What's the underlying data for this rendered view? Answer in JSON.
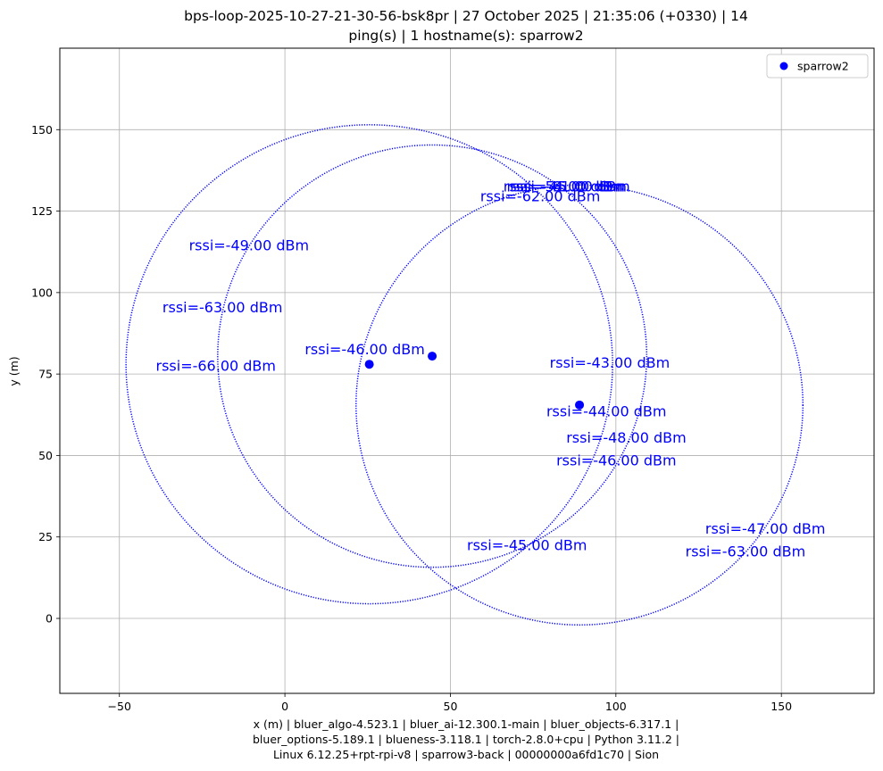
{
  "chart_data": {
    "type": "scatter",
    "title": [
      "bps-loop-2025-10-27-21-30-56-bsk8pr | 27 October 2025 | 21:35:06 (+0330) | 14",
      "ping(s) | 1 hostname(s): sparrow2"
    ],
    "xlabel": [
      "x (m) | bluer_algo-4.523.1 | bluer_ai-12.300.1-main | bluer_objects-6.317.1 |",
      "bluer_options-5.189.1 | blueness-3.118.1 | torch-2.8.0+cpu | Python 3.11.2 |",
      "Linux 6.12.25+rpt-rpi-v8 | sparrow3-back | 00000000a6fd1c70 | Sion"
    ],
    "ylabel": "y (m)",
    "xlim": [
      -68,
      178
    ],
    "ylim": [
      -23,
      175
    ],
    "xticks": [
      -50,
      0,
      50,
      100,
      150
    ],
    "yticks": [
      0,
      25,
      50,
      75,
      100,
      125,
      150
    ],
    "grid": true,
    "legend": {
      "position": "top-right",
      "entries": [
        "sparrow2"
      ]
    },
    "series": [
      {
        "name": "sparrow2",
        "color": "#0000ff",
        "points": [
          {
            "x": 25.5,
            "y": 78.0
          },
          {
            "x": 44.5,
            "y": 80.5
          },
          {
            "x": 89.0,
            "y": 65.5
          }
        ]
      }
    ],
    "circles": [
      {
        "cx": 25.5,
        "cy": 78.0,
        "r": 73.5
      },
      {
        "cx": 44.5,
        "cy": 80.5,
        "r": 64.8
      },
      {
        "cx": 89.0,
        "cy": 65.5,
        "r": 67.5
      }
    ],
    "annotations": [
      {
        "text": "rssi=-54.00 dBm",
        "x": 66,
        "y": 131
      },
      {
        "text": "rssi=-45.00 dBm",
        "x": 67,
        "y": 131
      },
      {
        "text": "rssi=-61.00 dBm",
        "x": 68,
        "y": 131
      },
      {
        "text": "rssi=-62.00 dBm",
        "x": 59,
        "y": 128
      },
      {
        "text": "rssi=-49.00 dBm",
        "x": -29,
        "y": 113
      },
      {
        "text": "rssi=-63.00 dBm",
        "x": -37,
        "y": 94
      },
      {
        "text": "rssi=-46.00 dBm",
        "x": 6,
        "y": 81
      },
      {
        "text": "rssi=-66.00 dBm",
        "x": -39,
        "y": 76
      },
      {
        "text": "rssi=-43.00 dBm",
        "x": 80,
        "y": 77
      },
      {
        "text": "rssi=-44.00 dBm",
        "x": 79,
        "y": 62
      },
      {
        "text": "rssi=-48.00 dBm",
        "x": 85,
        "y": 54
      },
      {
        "text": "rssi=-46.00 dBm",
        "x": 82,
        "y": 47
      },
      {
        "text": "rssi=-47.00 dBm",
        "x": 127,
        "y": 26
      },
      {
        "text": "rssi=-45.00 dBm",
        "x": 55,
        "y": 21
      },
      {
        "text": "rssi=-63.00 dBm",
        "x": 121,
        "y": 19
      }
    ]
  }
}
